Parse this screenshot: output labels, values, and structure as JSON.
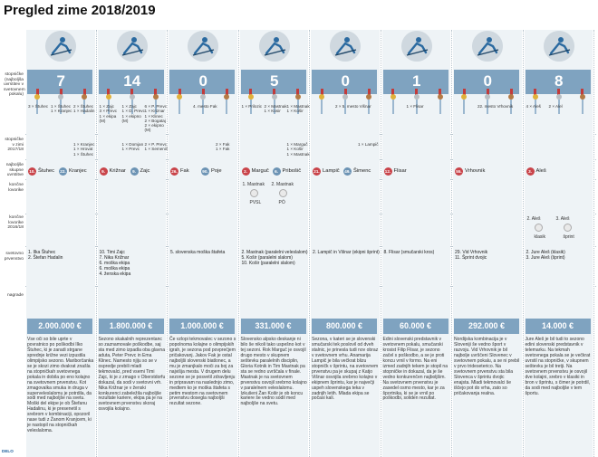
{
  "title": "Pregled zime 2018/2019",
  "row_labels": {
    "podiums": "stopničke\n(najboljša\nuvrstitev v\nsvetovnem\npokalu)",
    "podiums_1718": "stopničke\nv zimi\n2017/18",
    "best_overall": "najboljše\nskupne\nuvrstitve",
    "final_laurels": "končne\nlovorike",
    "final_laurels_1617": "končne\nlovorike\n2016/18",
    "world_champ": "svetovno\nprvenstvo",
    "prizes": "nagrade"
  },
  "source": "DELO",
  "disciplines": [
    {
      "name": "ALPSKO SMUČANJE",
      "icon": "alpine-skier-icon",
      "count": "7",
      "podium_lines": "3 × Štuhec",
      "podium_lines2": "1 × Štuhec\n1 × Kranjec",
      "podium_lines3": "2 × Štuhec\n1 × Hadalin",
      "podiums_1718_a": "",
      "podiums_1718_b": "1 × Kranjec\n1 × Hrovat\n1 × Štuhec",
      "p1_rank": "10.",
      "p1_name": "Štuhec",
      "p2_rank": "22.",
      "p2_name": "Kranjec",
      "laurels": [],
      "laurels_1617": [],
      "wc": "1. Ilka Štuhec\n2. Štefan Hadalin",
      "prize": "2.000.000 €",
      "text": "Vse oči so bile uprte v povratnico po poškodbi Ilko Štuhec, ki je zaradi strgane sprednje križne vezi izpustila olimpijsko sezono. Mariborčanka se je skozi zimo dvakrat znašla na stopničkah svetovnega pokala in dobila po eno kolajno na svetovnem prvenstvu. Kot zmagovalka smuka in druga v superveleslalomu je potrdila, da sodi med najboljše na svetu. Moški del ekipe je ob Štefanu Hadalinu, ki je presenetil s srebrom v kombinaciji, opozoril nase tudi z Žanom Kranjcem, ki je nastopil na stopničkah veleslaloma."
    },
    {
      "name": "SKOKI",
      "icon": "ski-jumper-icon",
      "count": "14",
      "podium_lines": "1 × Zajc\n3 × Prevc\n1 × ekipa\n(M)",
      "podium_lines2": "1 × Zajc\n1 × D. Prevc\n1 × ekipno\n(M)",
      "podium_lines3": "6 × P. Prevc\n1 × Kriznar\n1 × Klinec\n2 × Bogataj\n2 × ekipno\n(M)",
      "podiums_1718_a": "1 × Domjan\n1 × Prevc",
      "podiums_1718_b": "2 × P. Prevc\n1 × Semenič",
      "p1_rank": "9.",
      "p1_name": "Križnar",
      "p2_rank": "9.",
      "p2_name": "Zajc",
      "laurels": [],
      "laurels_1617": [],
      "wc": "10. Timi Zajc\n7. Nika Križnar\n6. moška ekipa\n6. moška ekipa\n4. ženska ekipa",
      "prize": "1.800.000 €",
      "text": "Sezono skakalnih reprezentanc so zaznamovale poškodbe, saj sta med zimo izpadla oba glavna aduta, Peter Prevc in Ema Klinec. Namesto njiju so se v ospredje prebili mladi tekmovalci, pred vsemi Timi Zajc, ki je z zmago v Oberstdorfu dokazal, da sodi v svetovni vrh. Nika Križnar je v ženski konkurenci zabeležila najboljše rezultate kariere, ekipa pa je na svetovnem prvenstvu skoraj osvojila kolajno."
    },
    {
      "name": "BIATLON",
      "icon": "biathlete-icon",
      "count": "0",
      "podium_lines": "",
      "podium_lines2": "4. mesto Fak",
      "podium_lines3": "",
      "podiums_1718_a": "",
      "podiums_1718_b": "2 × Fak\n1 × Fak",
      "p1_rank": "26.",
      "p1_name": "Fak",
      "p2_rank": "90.",
      "p2_name": "Poje",
      "laurels": [],
      "laurels_1617": [],
      "wc": "5. slovenska moška štafeta",
      "prize": "1.000.000 €",
      "text": "Če vzlopi tekmovalec v sezono s popolnoma kolajne o olimpijskih igrah, je sezona pod povprečjem pričakovanj. Jakov Fak je ostal najboljši slovenski biatlonec, a mu je zmanjkalo moči za boj za najvišja mesta. V drugem delu sezone se je posvetil zdravljenju in pripravam na naslednjo zimo, medtem ko je moška štafeta s petim mestom na svetovnem prvenstvu dosegla najboljši rezultat sezone."
    },
    {
      "name": "DESKANJE",
      "icon": "snowboarder-icon",
      "count": "5",
      "podium_lines": "1 × Prilozic",
      "podium_lines2": "2 × Mastnak\n1 × Kosir",
      "podium_lines3": "1 × Mastnak\n1 × Košir",
      "podiums_1718_a": "",
      "podiums_1718_b": "1 × Marguč\n1 × Košir\n1 × Mastnak",
      "p1_rank": "2.",
      "p1_name": "Marguč",
      "p2_rank": "6.",
      "p2_name": "Pribošič",
      "laurels": [
        {
          "label": "1. Mastnak",
          "sub": "PVSL"
        },
        {
          "label": "2. Mastnak",
          "sub": "PÓ"
        }
      ],
      "laurels_1617": [],
      "wc": "2. Mastnak (paralelni veleslalom)\n5. Košir (paralelni slalom)\n10. Košir (paralelni slalom)",
      "prize": "331.000 €",
      "text": "Slovensko alpsko deskanje ni bilo še nikoli tako uspešno kot v tej sezoni. Rok Marguč je osvojil drugo mesto v skupnem seštevku paralelnih disciplin, Gloria Kotnik in Tim Mastnak pa sta se redno uvrščala v finale. Mastnak je na svetovnem prvenstvu osvojil srebrno kolajno v paralelnem veleslalomu. Izkušeni Žan Košir je ob koncu kariere še vedno sodil med najboljše na svetu."
    },
    {
      "name": "TEKI",
      "icon": "cross-country-skier-icon",
      "count": "0",
      "podium_lines": "",
      "podium_lines2": "2 × 5. mesto Višnar",
      "podium_lines3": "",
      "podiums_1718_a": "",
      "podiums_1718_b": "1 × Lampič",
      "p1_rank": "21.",
      "p1_name": "Lampič",
      "p2_rank": "49.",
      "p2_name": "Šimenc",
      "laurels": [],
      "laurels_1617": [],
      "wc": "2. Lampič in Višnar (ekipni šprint)",
      "prize": "800.000 €",
      "text": "Sezona, v kateri se je slovenski smučarski tek poslovil od dveh stalnic, je prinesla tudi nov obraz v svetovnem vrhu. Anamarija Lampič je bila večkrat blizu stopničk v šprintu, na svetovnem prvenstvu pa je skupaj z Katjo Višnar osvojila srebrno kolajno v ekipnem šprintu, kar je največji uspeh slovenskega teka v zadnjih letih. Mlada ekipa se počasi kali."
    },
    {
      "name": "PROSTI SLOG",
      "icon": "freestyle-skier-icon",
      "count": "1",
      "podium_lines": "",
      "podium_lines2": "1 × Flisar",
      "podium_lines3": "",
      "podiums_1718_a": "",
      "podiums_1718_b": "",
      "p1_rank": "12.",
      "p1_name": "Flisar",
      "p2_rank": "",
      "p2_name": "",
      "laurels": [],
      "laurels_1617": [],
      "wc": "8. Flisar (smučarski kros)",
      "prize": "60.000 €",
      "text": "Edini slovenski predstavnik v svetovnem pokalu, smučarski krosist Filip Flisar, je sezono začel s poškodbo, a se je proti koncu vrnil v formo. Na eni izmed zadnjih tekem je stopil na stopničke in dokazal, da je še vedno konkurenčen najboljšim. Na svetovnem prvenstvu je zasedel osmo mesto, kar je za športnika, ki se je vrnil po poškodbi, soliden rezultat."
    },
    {
      "name": "NORDIJSKA KOMB.",
      "icon": "nordic-combined-icon",
      "count": "0",
      "podium_lines": "",
      "podium_lines2": "22. mesto Vrhovnik",
      "podium_lines3": "",
      "podiums_1718_a": "",
      "podiums_1718_b": "",
      "p1_rank": "55.",
      "p1_name": "Vrhovnik",
      "p2_rank": "",
      "p2_name": "",
      "laurels": [],
      "laurels_1617": [],
      "wc": "29. Vid Vrhovnik\n11. Šprint dvojic",
      "prize": "292.000 €",
      "text": "Nordijska kombinacija je v Sloveniji še vedno šport v razvoju. Vid Vrhovnik je bil najbolje uvrščeni Slovenec v svetovnem pokalu, a se ni prebil v prvo trideseterico. Na svetovnem prvenstvu sta bila Slovenca v šprintu dvojic enajsta. Mladi tekmovalci še iščejo pot do vrha, zato so pričakovanja realna."
    },
    {
      "name": "TELEMARK",
      "icon": "telemark-skier-icon",
      "count": "8",
      "podium_lines": "4 × Aleš",
      "podium_lines2": "2 × Alel",
      "podium_lines3": "",
      "podiums_1718_a": "",
      "podiums_1718_b": "",
      "p1_rank": "3.",
      "p1_name": "Aleš",
      "p2_rank": "",
      "p2_name": "",
      "laurels": [],
      "laurels_1617": [
        {
          "label": "2. Aleš",
          "sub": "klasik"
        },
        {
          "label": "3. Aleš",
          "sub": "šprint"
        }
      ],
      "wc": "2. Jure Aleš (klasik)\n3. Jure Aleš (šprint)",
      "prize": "14.000 €",
      "text": "Jure Aleš je bil tudi to sezono edini slovenski predstavnik v telemarku. Na tekmah svetovnega pokala se je večkrat uvrstil na stopničke, v skupnem seštevku je bil tretji. Na svetovnem prvenstvu je osvojil dve kolajni, srebro v klasiki in bron v šprintu, s čimer je potrdil, da sodi med najboljše v tem športu."
    }
  ]
}
